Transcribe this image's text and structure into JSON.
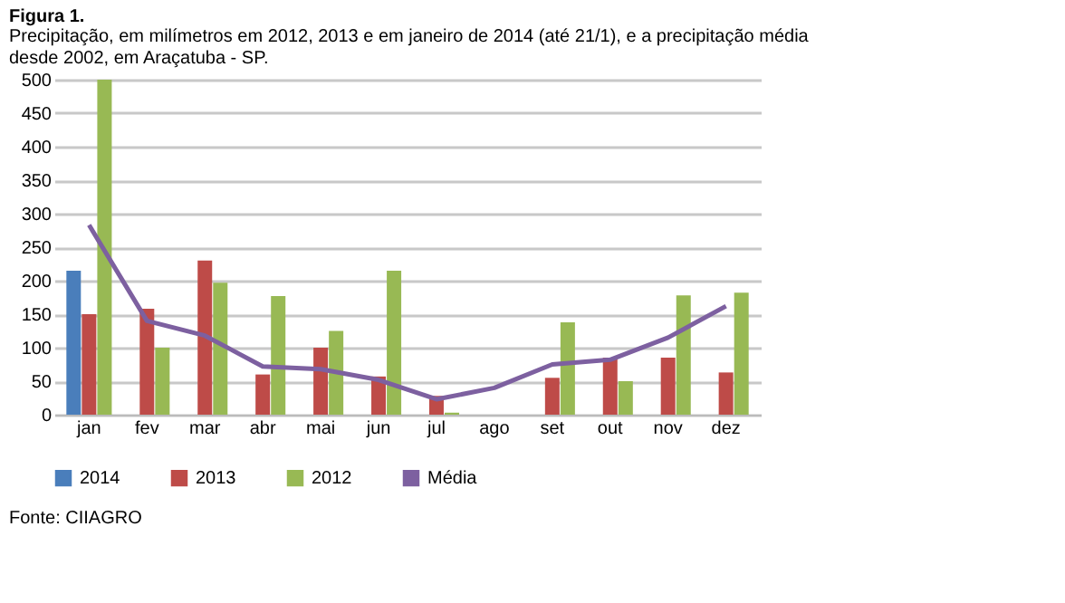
{
  "chart_data": {
    "type": "bar",
    "title": "Figura 1.",
    "subtitle": "Precipitação, em milímetros em 2012, 2013 e em janeiro de 2014 (até 21/1), e a precipitação média desde 2002, em Araçatuba - SP.",
    "categories": [
      "jan",
      "fev",
      "mar",
      "abr",
      "mai",
      "jun",
      "jul",
      "ago",
      "set",
      "out",
      "nov",
      "dez"
    ],
    "series": [
      {
        "name": "2014",
        "color": "#4a7ebb",
        "values": [
          215,
          null,
          null,
          null,
          null,
          null,
          null,
          null,
          null,
          null,
          null,
          null
        ]
      },
      {
        "name": "2013",
        "color": "#be4b48",
        "values": [
          150,
          158,
          230,
          60,
          100,
          57,
          28,
          null,
          55,
          85,
          85,
          63
        ]
      },
      {
        "name": "2012",
        "color": "#98b954",
        "values": [
          500,
          100,
          197,
          177,
          125,
          215,
          3,
          null,
          138,
          50,
          178,
          182
        ]
      },
      {
        "name": "Média",
        "type": "line",
        "color": "#7d60a0",
        "values": [
          283,
          140,
          118,
          72,
          68,
          52,
          23,
          40,
          75,
          82,
          115,
          162
        ]
      }
    ],
    "ylim": [
      0,
      500
    ],
    "yticks": [
      0,
      50,
      100,
      150,
      200,
      250,
      300,
      350,
      400,
      450,
      500
    ],
    "grid": "y",
    "legend": "bottom",
    "marker": "none",
    "annotations": [
      "Fonte: CIIAGRO"
    ]
  }
}
